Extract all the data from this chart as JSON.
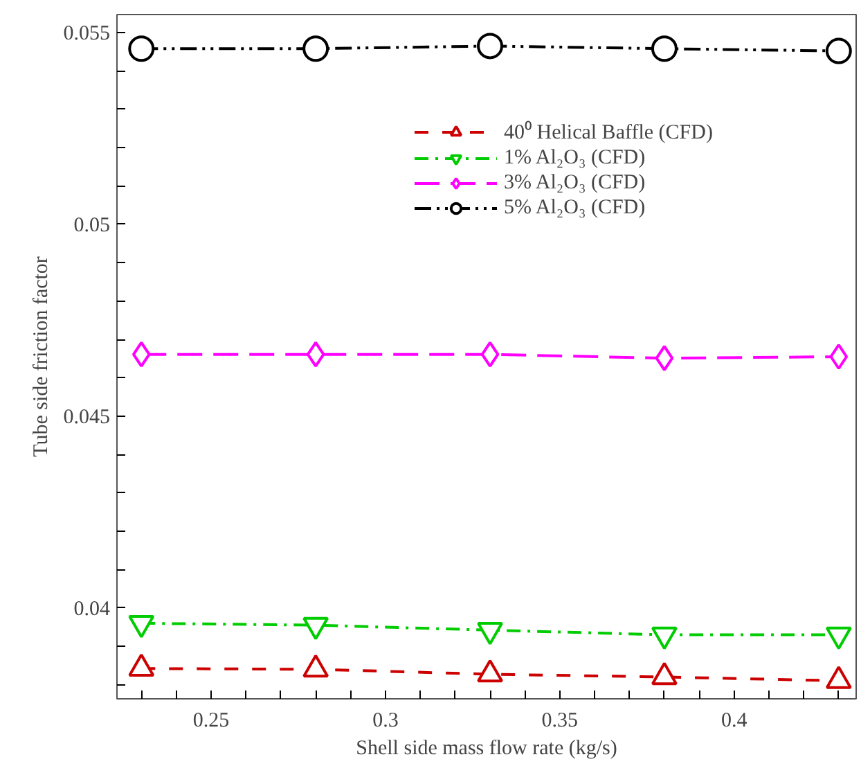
{
  "chart_data": {
    "type": "line",
    "xlabel": "Shell side mass flow rate (kg/s)",
    "ylabel": "Tube side friction factor",
    "x": [
      0.23,
      0.28,
      0.33,
      0.38,
      0.43
    ],
    "series": [
      {
        "name": "40⁰ Helical Baffle (CFD)",
        "color": "#cc0000",
        "marker": "triangle",
        "line_style": "dashed",
        "values": [
          0.03842,
          0.0384,
          0.03827,
          0.0382,
          0.0381
        ]
      },
      {
        "name": "1% Al₂O₃ (CFD)",
        "color": "#00cc00",
        "marker": "triangle_down",
        "line_style": "dashdot",
        "values": [
          0.0396,
          0.03955,
          0.03942,
          0.0393,
          0.0393
        ]
      },
      {
        "name": "3% Al₂O₃ (CFD)",
        "color": "#ff00ff",
        "marker": "diamond",
        "line_style": "longdash",
        "values": [
          0.04661,
          0.04661,
          0.04661,
          0.04651,
          0.04655
        ]
      },
      {
        "name": "5% Al₂O₃ (CFD)",
        "color": "#000000",
        "marker": "circle",
        "line_style": "dashdotdot",
        "values": [
          0.05458,
          0.05458,
          0.05465,
          0.05458,
          0.05452
        ]
      }
    ],
    "xlim": [
      0.223,
      0.435
    ],
    "ylim": [
      0.03763,
      0.05547
    ],
    "xticks": [
      {
        "value": 0.23,
        "label": null
      },
      {
        "value": 0.24,
        "label": null
      },
      0.25,
      {
        "value": 0.26,
        "label": null
      },
      {
        "value": 0.27,
        "label": null
      },
      {
        "value": 0.28,
        "label": null
      },
      {
        "value": 0.29,
        "label": null
      },
      0.3,
      {
        "value": 0.31,
        "label": null
      },
      {
        "value": 0.32,
        "label": null
      },
      {
        "value": 0.33,
        "label": null
      },
      {
        "value": 0.34,
        "label": null
      },
      0.35,
      {
        "value": 0.36,
        "label": null
      },
      {
        "value": 0.37,
        "label": null
      },
      {
        "value": 0.38,
        "label": null
      },
      {
        "value": 0.39,
        "label": null
      },
      0.4,
      {
        "value": 0.41,
        "label": null
      },
      {
        "value": 0.42,
        "label": null
      },
      {
        "value": 0.43,
        "label": null
      }
    ],
    "yticks": [
      {
        "value": 0.038,
        "label": null
      },
      {
        "value": 0.039,
        "label": null
      },
      0.04,
      {
        "value": 0.041,
        "label": null
      },
      {
        "value": 0.042,
        "label": null
      },
      {
        "value": 0.043,
        "label": null
      },
      {
        "value": 0.044,
        "label": null
      },
      0.045,
      {
        "value": 0.046,
        "label": null
      },
      {
        "value": 0.047,
        "label": null
      },
      {
        "value": 0.048,
        "label": null
      },
      {
        "value": 0.049,
        "label": null
      },
      0.05,
      {
        "value": 0.051,
        "label": null
      },
      {
        "value": 0.052,
        "label": null
      },
      {
        "value": 0.053,
        "label": null
      },
      {
        "value": 0.054,
        "label": null
      },
      0.055
    ],
    "grid": false,
    "legend": "top right"
  }
}
